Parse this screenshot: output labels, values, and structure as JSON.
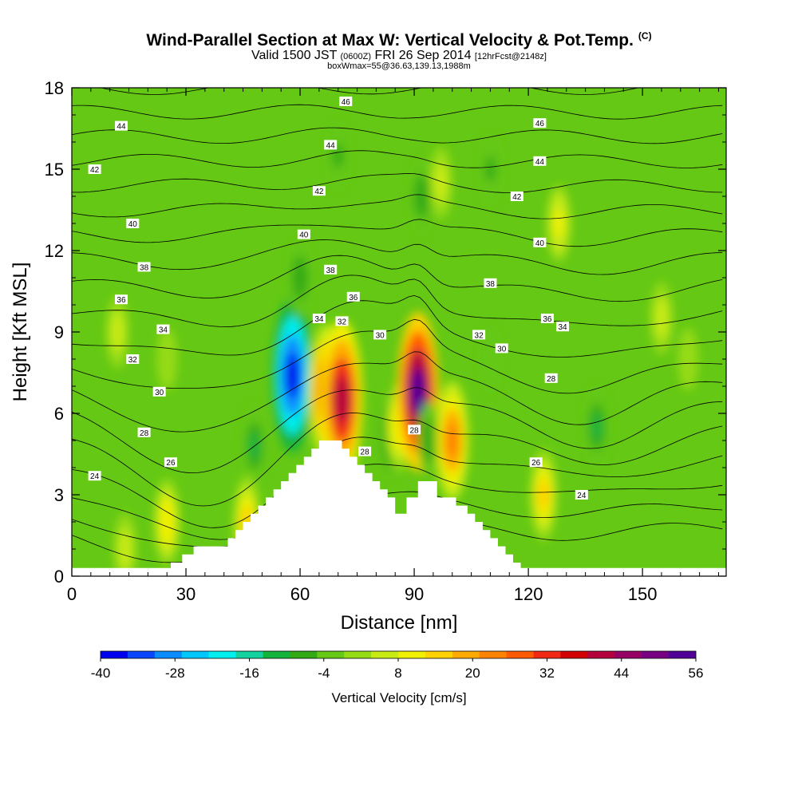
{
  "title": {
    "main": "Wind-Parallel Section at Max W: Vertical Velocity & Pot.Temp.",
    "copyright": "(C)",
    "valid_prefix": "Valid 1500 JST",
    "valid_z": "(0600Z)",
    "valid_date": "FRI 26 Sep 2014",
    "valid_fcst": "[12hrFcst@2148z]",
    "box_info": "boxWmax=55@36.63,139.13,1988m"
  },
  "chart_data": {
    "type": "heatmap",
    "xlabel": "Distance [nm]",
    "ylabel": "Height [Kft MSL]",
    "xlim": [
      0,
      172
    ],
    "ylim": [
      0,
      18
    ],
    "x_ticks": [
      0,
      30,
      60,
      90,
      120,
      150
    ],
    "y_ticks": [
      0,
      3,
      6,
      9,
      12,
      15,
      18
    ],
    "colorbar": {
      "label": "Vertical Velocity [cm/s]",
      "tick_labels": [
        -40,
        -28,
        -16,
        -4,
        8,
        20,
        32,
        44,
        56
      ],
      "colors": [
        "#0000ee",
        "#0a46ff",
        "#0a8cff",
        "#00c8ff",
        "#00eeee",
        "#14d2a0",
        "#14b43c",
        "#32aa14",
        "#64c814",
        "#96dc14",
        "#c8eb14",
        "#f0f000",
        "#ffd200",
        "#ffaa00",
        "#ff8200",
        "#ff5a00",
        "#f02814",
        "#d20000",
        "#b4003c",
        "#960064",
        "#780082",
        "#500096"
      ]
    },
    "terrain_profile": {
      "x": [
        0,
        26,
        26,
        29,
        29,
        32,
        32,
        41,
        41,
        43,
        43,
        45,
        45,
        47,
        47,
        49,
        49,
        51,
        51,
        53,
        53,
        55,
        55,
        57,
        57,
        59,
        59,
        61,
        61,
        63,
        63,
        65,
        65,
        71,
        71,
        73,
        73,
        75,
        75,
        77,
        77,
        79,
        79,
        81,
        81,
        83,
        83,
        85,
        85,
        88,
        88,
        91,
        91,
        96,
        96,
        101,
        101,
        104,
        104,
        106,
        106,
        108,
        108,
        110,
        110,
        112,
        112,
        114,
        114,
        116,
        116,
        118,
        118,
        120,
        120,
        122,
        122,
        124,
        124,
        172
      ],
      "y": [
        0.3,
        0.3,
        0.5,
        0.5,
        0.8,
        0.8,
        1.1,
        1.1,
        1.4,
        1.4,
        1.7,
        1.7,
        2.0,
        2.0,
        2.3,
        2.3,
        2.6,
        2.6,
        2.9,
        2.9,
        3.2,
        3.2,
        3.5,
        3.5,
        3.8,
        3.8,
        4.1,
        4.1,
        4.4,
        4.4,
        4.7,
        4.7,
        5.0,
        5.0,
        4.7,
        4.7,
        4.4,
        4.4,
        4.1,
        4.1,
        3.8,
        3.8,
        3.5,
        3.5,
        3.2,
        3.2,
        2.9,
        2.9,
        2.3,
        2.3,
        2.9,
        2.9,
        3.5,
        3.5,
        2.9,
        2.9,
        2.6,
        2.6,
        2.3,
        2.3,
        2.0,
        2.0,
        1.7,
        1.7,
        1.4,
        1.4,
        1.1,
        1.1,
        0.8,
        0.8,
        0.5,
        0.5,
        0.3,
        0.3,
        0.3,
        0.3,
        0.3,
        0.3,
        0.3,
        0.3
      ]
    },
    "vertical_velocity_cells": [
      {
        "x": 58,
        "y": 7.4,
        "w": -38
      },
      {
        "x": 67,
        "y": 6.8,
        "w": 30
      },
      {
        "x": 71,
        "y": 6.5,
        "w": 40
      },
      {
        "x": 84,
        "y": 5.2,
        "w": -12
      },
      {
        "x": 86,
        "y": 5.5,
        "w": 12
      },
      {
        "x": 91,
        "y": 6.8,
        "w": 55
      },
      {
        "x": 94,
        "y": 5.0,
        "w": -8
      },
      {
        "x": 100,
        "y": 5.0,
        "w": 24
      },
      {
        "x": 124,
        "y": 3.0,
        "w": 14
      },
      {
        "x": 128,
        "y": 13.0,
        "w": 8
      },
      {
        "x": 138,
        "y": 5.5,
        "w": -10
      },
      {
        "x": 48,
        "y": 4.8,
        "w": -10
      },
      {
        "x": 25,
        "y": 8.0,
        "w": 2
      },
      {
        "x": 12,
        "y": 9.0,
        "w": 6
      },
      {
        "x": 155,
        "y": 9.5,
        "w": 6
      },
      {
        "x": 162,
        "y": 8.0,
        "w": 2
      },
      {
        "x": 110,
        "y": 8.0,
        "w": -4
      },
      {
        "x": 60,
        "y": 11.0,
        "w": -8
      },
      {
        "x": 92,
        "y": 14.0,
        "w": -8
      },
      {
        "x": 97,
        "y": 14.5,
        "w": 6
      },
      {
        "x": 70,
        "y": 15.5,
        "w": -6
      },
      {
        "x": 110,
        "y": 15.0,
        "w": -6
      },
      {
        "x": 14,
        "y": 1.0,
        "w": 6
      },
      {
        "x": 25,
        "y": 2.0,
        "w": 12
      },
      {
        "x": 46,
        "y": 2.0,
        "w": 14
      }
    ],
    "theta_contours": {
      "levels": [
        24,
        26,
        28,
        30,
        32,
        34,
        36,
        38,
        40,
        42,
        44,
        46
      ],
      "labels": [
        {
          "text": "24",
          "x": 6,
          "y": 3.7
        },
        {
          "text": "26",
          "x": 26,
          "y": 4.2
        },
        {
          "text": "28",
          "x": 19,
          "y": 5.3
        },
        {
          "text": "30",
          "x": 23,
          "y": 6.8
        },
        {
          "text": "32",
          "x": 16,
          "y": 8.0
        },
        {
          "text": "34",
          "x": 24,
          "y": 9.1
        },
        {
          "text": "36",
          "x": 13,
          "y": 10.2
        },
        {
          "text": "38",
          "x": 19,
          "y": 11.4
        },
        {
          "text": "40",
          "x": 16,
          "y": 13.0
        },
        {
          "text": "42",
          "x": 6,
          "y": 15.0
        },
        {
          "text": "44",
          "x": 13,
          "y": 16.6
        },
        {
          "text": "34",
          "x": 65,
          "y": 9.5
        },
        {
          "text": "32",
          "x": 71,
          "y": 9.4
        },
        {
          "text": "36",
          "x": 74,
          "y": 10.3
        },
        {
          "text": "38",
          "x": 68,
          "y": 11.3
        },
        {
          "text": "40",
          "x": 61,
          "y": 12.6
        },
        {
          "text": "42",
          "x": 65,
          "y": 14.2
        },
        {
          "text": "44",
          "x": 68,
          "y": 15.9
        },
        {
          "text": "46",
          "x": 72,
          "y": 17.5
        },
        {
          "text": "30",
          "x": 81,
          "y": 8.9
        },
        {
          "text": "28",
          "x": 77,
          "y": 4.6
        },
        {
          "text": "28",
          "x": 90,
          "y": 5.4
        },
        {
          "text": "32",
          "x": 107,
          "y": 8.9
        },
        {
          "text": "30",
          "x": 113,
          "y": 8.4
        },
        {
          "text": "38",
          "x": 110,
          "y": 10.8
        },
        {
          "text": "40",
          "x": 123,
          "y": 12.3
        },
        {
          "text": "42",
          "x": 117,
          "y": 14.0
        },
        {
          "text": "44",
          "x": 123,
          "y": 15.3
        },
        {
          "text": "46",
          "x": 123,
          "y": 16.7
        },
        {
          "text": "36",
          "x": 125,
          "y": 9.5
        },
        {
          "text": "34",
          "x": 129,
          "y": 9.2
        },
        {
          "text": "28",
          "x": 126,
          "y": 7.3
        },
        {
          "text": "26",
          "x": 122,
          "y": 4.2
        },
        {
          "text": "24",
          "x": 134,
          "y": 3.0
        }
      ]
    }
  }
}
